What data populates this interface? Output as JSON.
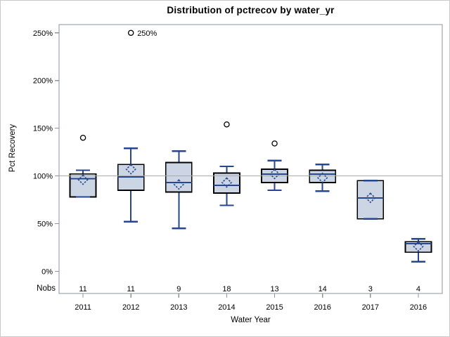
{
  "chart_data": {
    "type": "boxplot",
    "title": "Distribution of pctrecov by water_yr",
    "xlabel": "Water Year",
    "ylabel": "Pct Recovery",
    "nobs_row_label": "Nobs",
    "categories": [
      "2011",
      "2012",
      "2013",
      "2014",
      "2015",
      "2016",
      "2017",
      "2016"
    ],
    "nobs": [
      11,
      11,
      9,
      18,
      13,
      14,
      3,
      4
    ],
    "ylim": [
      -23.3,
      258.7
    ],
    "yticks": [
      0,
      50,
      100,
      150,
      200,
      250
    ],
    "ytick_labels": [
      "0%",
      "50%",
      "100%",
      "150%",
      "200%",
      "250%"
    ],
    "reference_line": 100,
    "grid": false,
    "legend": "none",
    "boxes": [
      {
        "category": "2011",
        "nobs": 11,
        "whisker_low": 78,
        "q1": 78,
        "median": 97,
        "q3": 102,
        "whisker_high": 106,
        "mean": 96,
        "outliers": [
          {
            "value": 140
          }
        ]
      },
      {
        "category": "2012",
        "nobs": 11,
        "whisker_low": 52,
        "q1": 85,
        "median": 99,
        "q3": 112,
        "whisker_high": 129,
        "mean": 107,
        "outliers": [
          {
            "value": 250,
            "label": "250%"
          }
        ]
      },
      {
        "category": "2013",
        "nobs": 9,
        "whisker_low": 45,
        "q1": 83,
        "median": 93,
        "q3": 114,
        "whisker_high": 126,
        "mean": 91,
        "outliers": []
      },
      {
        "category": "2014",
        "nobs": 18,
        "whisker_low": 69,
        "q1": 82,
        "median": 90,
        "q3": 103,
        "whisker_high": 110,
        "mean": 93,
        "outliers": [
          {
            "value": 154
          }
        ]
      },
      {
        "category": "2015",
        "nobs": 13,
        "whisker_low": 85,
        "q1": 93,
        "median": 102,
        "q3": 107,
        "whisker_high": 116,
        "mean": 102,
        "outliers": [
          {
            "value": 134
          }
        ]
      },
      {
        "category": "2016",
        "nobs": 14,
        "whisker_low": 84,
        "q1": 93,
        "median": 102,
        "q3": 106,
        "whisker_high": 112,
        "mean": 98,
        "outliers": []
      },
      {
        "category": "2017",
        "nobs": 3,
        "whisker_low": 55,
        "q1": 55,
        "median": 77,
        "q3": 95,
        "whisker_high": 95,
        "mean": 77,
        "outliers": []
      },
      {
        "category": "2016",
        "nobs": 4,
        "whisker_low": 10,
        "q1": 20,
        "median": 29,
        "q3": 31,
        "whisker_high": 34,
        "mean": 26,
        "outliers": []
      }
    ],
    "colors": {
      "box_fill": "#CBD5E4",
      "box_border": "#000000",
      "whisker": "#25478F",
      "median": "#25478F",
      "mean_marker": "#25478F",
      "outlier": "#000000",
      "reference_line": "#AAAAAA",
      "axis": "#8C939B",
      "text": "#000000",
      "background": "#FFFFFF",
      "figure_border": "#C9C9C9"
    }
  }
}
